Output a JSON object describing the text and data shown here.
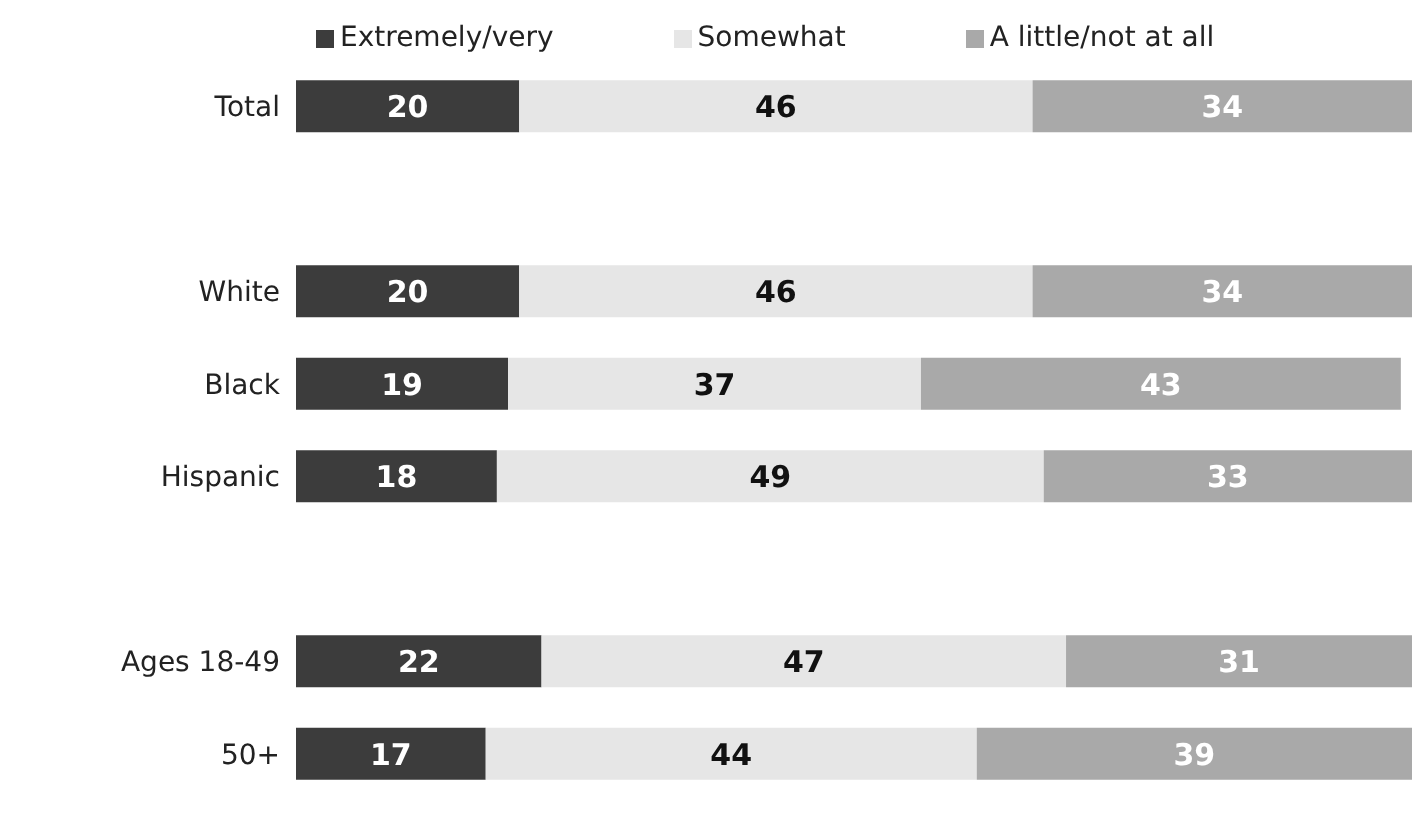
{
  "chart_data": {
    "type": "bar",
    "orientation": "horizontal",
    "stacked": true,
    "data_labels": true,
    "legend": "top",
    "grid": false,
    "categories": [
      "Total",
      null,
      "White",
      "Black",
      "Hispanic",
      null,
      "Ages 18-49",
      "50+"
    ],
    "series": [
      {
        "name": "Extremely/very",
        "color": "#3c3c3c",
        "values": [
          20,
          null,
          20,
          19,
          18,
          null,
          22,
          17
        ]
      },
      {
        "name": "Somewhat",
        "color": "#e6e6e6",
        "values": [
          46,
          null,
          46,
          37,
          49,
          null,
          47,
          44
        ]
      },
      {
        "name": "A little/not at all",
        "color": "#a9a9a9",
        "values": [
          34,
          null,
          34,
          43,
          33,
          null,
          31,
          39
        ]
      }
    ]
  }
}
